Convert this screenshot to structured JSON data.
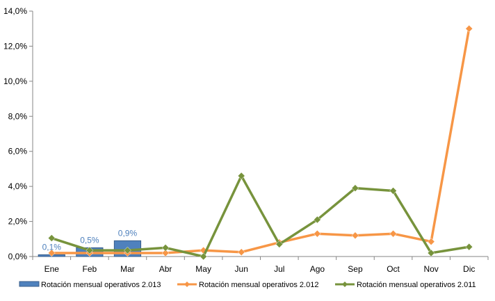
{
  "chart_data": {
    "type": "bar",
    "title": "",
    "xlabel": "",
    "ylabel": "",
    "categories": [
      "Ene",
      "Feb",
      "Mar",
      "Abr",
      "May",
      "Jun",
      "Jul",
      "Ago",
      "Sep",
      "Oct",
      "Nov",
      "Dic"
    ],
    "ylim": [
      0,
      14
    ],
    "yticks": [
      "0,0%",
      "2,0%",
      "4,0%",
      "6,0%",
      "8,0%",
      "10,0%",
      "12,0%",
      "14,0%"
    ],
    "grid": false,
    "legend_position": "bottom",
    "series": [
      {
        "name": "Rotación mensual operativos 2.013",
        "type": "bar",
        "color": "#4f81bd",
        "values": [
          0.1,
          0.5,
          0.9,
          null,
          null,
          null,
          null,
          null,
          null,
          null,
          null,
          null
        ],
        "labels": [
          "0,1%",
          "0,5%",
          "0,9%",
          "",
          "",
          "",
          "",
          "",
          "",
          "",
          "",
          ""
        ]
      },
      {
        "name": "Rotación mensual operativos 2.012",
        "type": "line",
        "marker": "diamond",
        "color": "#f79646",
        "values": [
          0.2,
          0.2,
          0.2,
          0.2,
          0.35,
          0.25,
          0.8,
          1.3,
          1.2,
          1.3,
          0.85,
          13.0
        ]
      },
      {
        "name": "Rotación mensual operativos 2.011",
        "type": "line",
        "marker": "diamond",
        "color": "#77933c",
        "values": [
          1.05,
          0.35,
          0.35,
          0.5,
          0.0,
          4.6,
          0.7,
          2.1,
          3.9,
          3.75,
          0.2,
          0.55
        ]
      }
    ]
  }
}
